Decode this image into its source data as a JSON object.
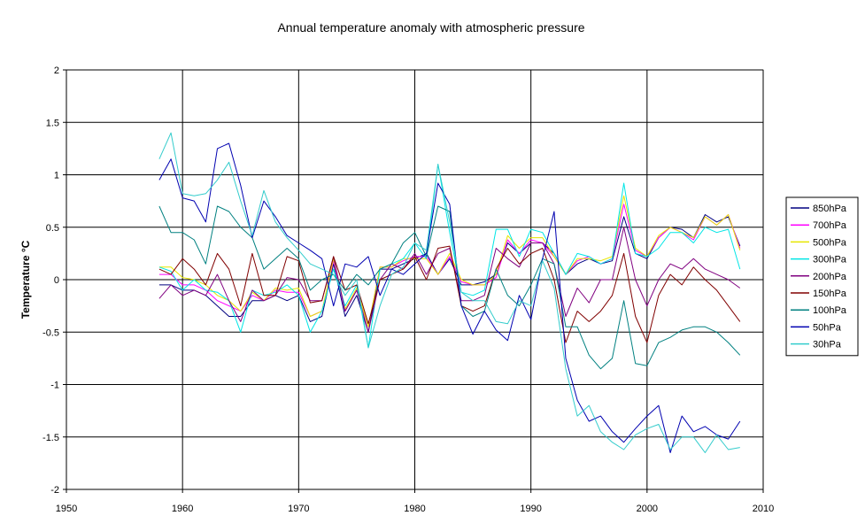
{
  "chart_data": {
    "type": "line",
    "title": "Annual temperature anomaly with atmospheric pressure",
    "xlabel": "",
    "ylabel": "Temperature  °C",
    "xlim": [
      1950,
      2010
    ],
    "ylim": [
      -2,
      2
    ],
    "x_ticks": [
      1950,
      1960,
      1970,
      1980,
      1990,
      2000,
      2010
    ],
    "y_ticks": [
      2,
      1.5,
      1,
      0.5,
      0,
      -0.5,
      -1,
      -1.5,
      -2
    ],
    "grid": true,
    "legend_position": "right",
    "x": [
      1958,
      1959,
      1960,
      1961,
      1962,
      1963,
      1964,
      1965,
      1966,
      1967,
      1968,
      1969,
      1970,
      1971,
      1972,
      1973,
      1974,
      1975,
      1976,
      1977,
      1978,
      1979,
      1980,
      1981,
      1982,
      1983,
      1984,
      1985,
      1986,
      1987,
      1988,
      1989,
      1990,
      1991,
      1992,
      1993,
      1994,
      1995,
      1996,
      1997,
      1998,
      1999,
      2000,
      2001,
      2002,
      2003,
      2004,
      2005,
      2006,
      2007,
      2008
    ],
    "series": [
      {
        "name": "850hPa",
        "color": "#000080",
        "values": [
          -0.05,
          -0.05,
          -0.1,
          -0.1,
          -0.15,
          -0.25,
          -0.35,
          -0.35,
          -0.2,
          -0.2,
          -0.15,
          -0.2,
          -0.15,
          -0.4,
          -0.35,
          0.15,
          -0.35,
          -0.15,
          -0.5,
          0.1,
          0.1,
          0.15,
          0.2,
          0.25,
          0.05,
          0.2,
          -0.05,
          -0.05,
          -0.02,
          0.05,
          0.35,
          0.25,
          0.35,
          0.35,
          0.25,
          0.05,
          0.15,
          0.2,
          0.15,
          0.18,
          0.6,
          0.25,
          0.2,
          0.4,
          0.5,
          0.48,
          0.4,
          0.62,
          0.55,
          0.6,
          0.32
        ]
      },
      {
        "name": "700hPa",
        "color": "#ff00ff",
        "values": [
          0.05,
          0.05,
          -0.05,
          -0.05,
          -0.1,
          -0.2,
          -0.25,
          -0.3,
          -0.15,
          -0.2,
          -0.1,
          -0.12,
          -0.12,
          -0.35,
          -0.3,
          0.18,
          -0.3,
          -0.1,
          -0.45,
          0.12,
          0.12,
          0.18,
          0.22,
          0.22,
          0.05,
          0.22,
          -0.02,
          -0.05,
          -0.05,
          0.02,
          0.38,
          0.25,
          0.38,
          0.35,
          0.22,
          0.05,
          0.18,
          0.22,
          0.15,
          0.2,
          0.72,
          0.28,
          0.22,
          0.4,
          0.5,
          0.45,
          0.38,
          0.6,
          0.52,
          0.62,
          0.3
        ]
      },
      {
        "name": "500hPa",
        "color": "#e6e600",
        "values": [
          0.12,
          0.12,
          0.02,
          0.0,
          -0.05,
          -0.15,
          -0.2,
          -0.3,
          -0.12,
          -0.2,
          -0.08,
          -0.1,
          -0.08,
          -0.35,
          -0.3,
          0.2,
          -0.28,
          -0.08,
          -0.45,
          0.12,
          0.12,
          0.2,
          0.2,
          0.2,
          0.05,
          0.25,
          0.0,
          -0.05,
          -0.05,
          0.05,
          0.42,
          0.3,
          0.4,
          0.4,
          0.22,
          0.05,
          0.2,
          0.2,
          0.18,
          0.22,
          0.8,
          0.3,
          0.22,
          0.42,
          0.5,
          0.45,
          0.4,
          0.6,
          0.52,
          0.62,
          0.28
        ]
      },
      {
        "name": "300hPa",
        "color": "#00e5e5",
        "values": [
          0.12,
          0.08,
          -0.1,
          0.0,
          -0.1,
          -0.12,
          -0.2,
          -0.5,
          -0.1,
          -0.15,
          -0.12,
          -0.05,
          -0.15,
          -0.5,
          -0.3,
          0.1,
          -0.25,
          -0.05,
          -0.65,
          0.1,
          0.15,
          0.2,
          0.35,
          0.2,
          1.1,
          0.45,
          -0.12,
          -0.15,
          -0.1,
          0.48,
          0.48,
          0.22,
          0.48,
          0.45,
          0.25,
          0.05,
          0.25,
          0.22,
          0.15,
          0.2,
          0.92,
          0.25,
          0.22,
          0.3,
          0.45,
          0.45,
          0.35,
          0.5,
          0.45,
          0.48,
          0.1
        ]
      },
      {
        "name": "200hPa",
        "color": "#800080",
        "values": [
          -0.18,
          -0.05,
          -0.15,
          -0.1,
          -0.15,
          0.05,
          -0.2,
          -0.4,
          -0.1,
          -0.2,
          -0.15,
          0.02,
          0.0,
          -0.2,
          -0.2,
          0.22,
          -0.3,
          -0.1,
          -0.5,
          0.0,
          0.15,
          0.1,
          0.25,
          0.05,
          0.25,
          0.3,
          -0.2,
          -0.2,
          -0.15,
          0.3,
          0.2,
          0.12,
          0.35,
          0.35,
          0.15,
          -0.35,
          -0.08,
          -0.22,
          0.0,
          0.0,
          0.5,
          0.0,
          -0.25,
          0.0,
          0.15,
          0.1,
          0.2,
          0.1,
          0.05,
          0.0,
          -0.08
        ]
      },
      {
        "name": "150hPa",
        "color": "#800000",
        "values": [
          0.1,
          0.05,
          0.2,
          0.1,
          -0.05,
          0.25,
          0.1,
          -0.25,
          0.25,
          -0.15,
          -0.15,
          0.22,
          0.18,
          -0.22,
          -0.2,
          0.22,
          -0.1,
          -0.05,
          -0.42,
          0.0,
          0.05,
          0.1,
          0.22,
          0.0,
          0.3,
          0.32,
          -0.25,
          -0.3,
          -0.25,
          0.1,
          0.3,
          0.15,
          0.25,
          0.3,
          0.0,
          -0.6,
          -0.3,
          -0.4,
          -0.3,
          -0.15,
          0.25,
          -0.35,
          -0.6,
          -0.15,
          0.05,
          -0.05,
          0.12,
          0.0,
          -0.1,
          -0.25,
          -0.4
        ]
      },
      {
        "name": "100hPa",
        "color": "#008080",
        "values": [
          0.7,
          0.45,
          0.45,
          0.38,
          0.15,
          0.7,
          0.65,
          0.5,
          0.4,
          0.1,
          0.2,
          0.3,
          0.2,
          -0.1,
          0.0,
          0.05,
          -0.1,
          0.05,
          -0.05,
          0.1,
          0.15,
          0.35,
          0.45,
          0.22,
          0.7,
          0.65,
          -0.25,
          -0.35,
          -0.3,
          0.1,
          -0.15,
          -0.25,
          -0.05,
          0.2,
          0.15,
          -0.45,
          -0.45,
          -0.72,
          -0.85,
          -0.75,
          -0.2,
          -0.8,
          -0.82,
          -0.6,
          -0.55,
          -0.48,
          -0.45,
          -0.45,
          -0.5,
          -0.6,
          -0.72
        ]
      },
      {
        "name": "50hPa",
        "color": "#0000b0",
        "values": [
          0.95,
          1.15,
          0.78,
          0.75,
          0.55,
          1.25,
          1.3,
          0.9,
          0.4,
          0.75,
          0.6,
          0.42,
          0.35,
          0.28,
          0.2,
          -0.25,
          0.15,
          0.12,
          0.22,
          -0.15,
          0.1,
          0.05,
          0.15,
          0.25,
          0.92,
          0.72,
          -0.25,
          -0.52,
          -0.3,
          -0.48,
          -0.58,
          -0.15,
          -0.38,
          0.2,
          0.65,
          -0.75,
          -1.15,
          -1.35,
          -1.3,
          -1.45,
          -1.55,
          -1.42,
          -1.3,
          -1.2,
          -1.65,
          -1.3,
          -1.45,
          -1.4,
          -1.48,
          -1.52,
          -1.35
        ]
      },
      {
        "name": "30hPa",
        "color": "#33cccc",
        "values": [
          1.15,
          1.4,
          0.82,
          0.8,
          0.82,
          0.95,
          1.12,
          0.75,
          0.42,
          0.85,
          0.55,
          0.4,
          0.28,
          0.15,
          0.1,
          0.05,
          -0.15,
          0.0,
          -0.65,
          -0.25,
          0.05,
          0.12,
          0.35,
          0.28,
          1.1,
          0.55,
          -0.12,
          -0.2,
          -0.2,
          -0.4,
          -0.42,
          -0.2,
          -0.25,
          0.18,
          -0.08,
          -0.85,
          -1.3,
          -1.2,
          -1.45,
          -1.55,
          -1.62,
          -1.48,
          -1.42,
          -1.38,
          -1.62,
          -1.5,
          -1.5,
          -1.65,
          -1.48,
          -1.62,
          -1.6
        ]
      }
    ]
  }
}
